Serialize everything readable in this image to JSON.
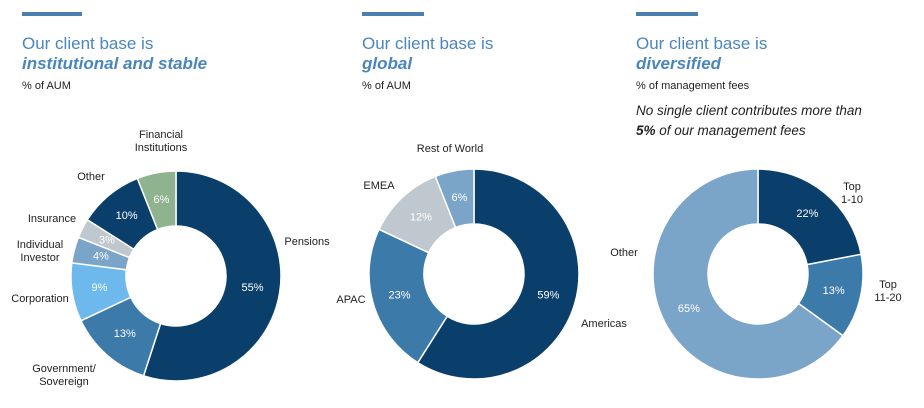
{
  "colors": {
    "accent": "#4a7fb0",
    "title": "#4a86be",
    "pensions": "#0b3f6b",
    "government": "#3c7aa9",
    "corporation": "#6db9ee",
    "individual": "#7aa5c8",
    "insurance": "#c0c8cf",
    "other": "#0b3f6b",
    "financial": "#8fb28f",
    "americas": "#0b3f6b",
    "apac": "#3c7aa9",
    "emea": "#c0c8cf",
    "rest": "#7aa5c8",
    "top10": "#0b3f6b",
    "top20": "#3c7aa9",
    "other_clients": "#7aa5c8"
  },
  "panels": [
    {
      "title_line1": "Our client base is",
      "title_line2": "institutional and stable",
      "subtitle": "% of AUM"
    },
    {
      "title_line1": "Our client base is",
      "title_line2": "global",
      "subtitle": "% of AUM"
    },
    {
      "title_line1": "Our client base is",
      "title_line2": "diversified",
      "subtitle": "% of management fees",
      "note_line1": "No single client contributes more than",
      "note_bold": "5%",
      "note_rest": " of our management fees"
    }
  ],
  "chart_data": [
    {
      "type": "pie",
      "title": "Our client base is institutional and stable",
      "subtitle": "% of AUM",
      "slices": [
        {
          "label": "Pensions",
          "value": 55,
          "value_label": "55%",
          "color": "#0b3f6b",
          "label_lines": [
            "Pensions"
          ]
        },
        {
          "label": "Government/ Sovereign",
          "value": 13,
          "value_label": "13%",
          "color": "#3c7aa9",
          "label_lines": [
            "Government/",
            "Sovereign"
          ]
        },
        {
          "label": "Corporation",
          "value": 9,
          "value_label": "9%",
          "color": "#6db9ee",
          "label_lines": [
            "Corporation"
          ]
        },
        {
          "label": "Individual Investor",
          "value": 4,
          "value_label": "4%",
          "color": "#7aa5c8",
          "label_lines": [
            "Individual",
            "Investor"
          ]
        },
        {
          "label": "Insurance",
          "value": 3,
          "value_label": "3%",
          "color": "#c0c8cf",
          "label_lines": [
            "Insurance"
          ]
        },
        {
          "label": "Other",
          "value": 10,
          "value_label": "10%",
          "color": "#0b3f6b",
          "label_lines": [
            "Other"
          ]
        },
        {
          "label": "Financial Institutions",
          "value": 6,
          "value_label": "6%",
          "color": "#8fb28f",
          "label_lines": [
            "Financial",
            "Institutions"
          ]
        }
      ]
    },
    {
      "type": "pie",
      "title": "Our client base is global",
      "subtitle": "% of AUM",
      "slices": [
        {
          "label": "Americas",
          "value": 59,
          "value_label": "59%",
          "color": "#0b3f6b",
          "label_lines": [
            "Americas"
          ]
        },
        {
          "label": "APAC",
          "value": 23,
          "value_label": "23%",
          "color": "#3c7aa9",
          "label_lines": [
            "APAC"
          ]
        },
        {
          "label": "EMEA",
          "value": 12,
          "value_label": "12%",
          "color": "#c0c8cf",
          "label_lines": [
            "EMEA"
          ]
        },
        {
          "label": "Rest of World",
          "value": 6,
          "value_label": "6%",
          "color": "#7aa5c8",
          "label_lines": [
            "Rest of World"
          ]
        }
      ]
    },
    {
      "type": "pie",
      "title": "Our client base is diversified",
      "subtitle": "% of management fees",
      "slices": [
        {
          "label": "Top 1-10",
          "value": 22,
          "value_label": "22%",
          "color": "#0b3f6b",
          "label_lines": [
            "Top",
            "1-10"
          ]
        },
        {
          "label": "Top 11-20",
          "value": 13,
          "value_label": "13%",
          "color": "#3c7aa9",
          "label_lines": [
            "Top",
            "11-20"
          ]
        },
        {
          "label": "Other",
          "value": 65,
          "value_label": "65%",
          "color": "#7aa5c8",
          "label_lines": [
            "Other"
          ]
        }
      ]
    }
  ]
}
